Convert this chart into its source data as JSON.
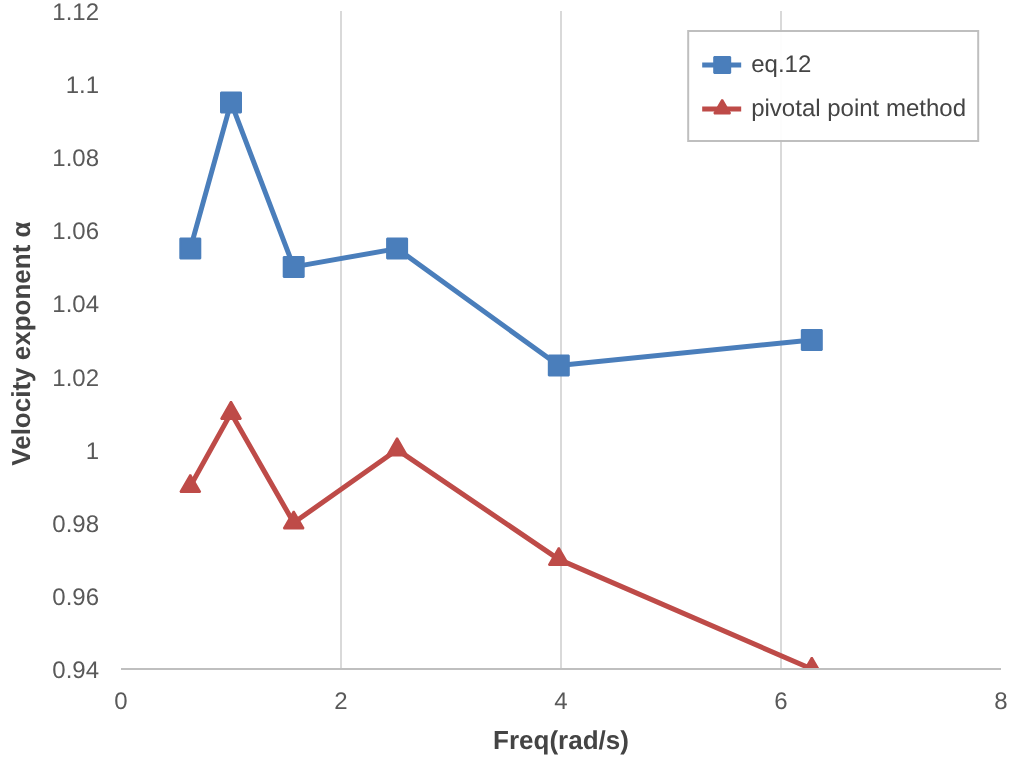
{
  "chart_data": {
    "type": "line",
    "xlabel": "Freq(rad/s)",
    "ylabel": "Velocity exponent  α",
    "xlim": [
      0,
      8
    ],
    "xticks": [
      0,
      2,
      4,
      6,
      8
    ],
    "ylim": [
      0.94,
      1.12
    ],
    "yticks": [
      0.94,
      0.96,
      0.98,
      1,
      1.02,
      1.04,
      1.06,
      1.08,
      1.1,
      1.12
    ],
    "grid": "x",
    "legend": "top right",
    "series": [
      {
        "name": "eq.12",
        "color": "#4a7ebb",
        "marker": "square",
        "x": [
          0.63,
          1.0,
          1.57,
          2.51,
          3.98,
          6.28
        ],
        "values": [
          1.055,
          1.095,
          1.05,
          1.055,
          1.023,
          1.03
        ]
      },
      {
        "name": "pivotal point method",
        "color": "#be4b48",
        "marker": "triangle",
        "x": [
          0.63,
          1.0,
          1.57,
          2.51,
          3.98,
          6.28
        ],
        "values": [
          0.99,
          1.01,
          0.98,
          1.0,
          0.97,
          0.94
        ]
      }
    ]
  }
}
